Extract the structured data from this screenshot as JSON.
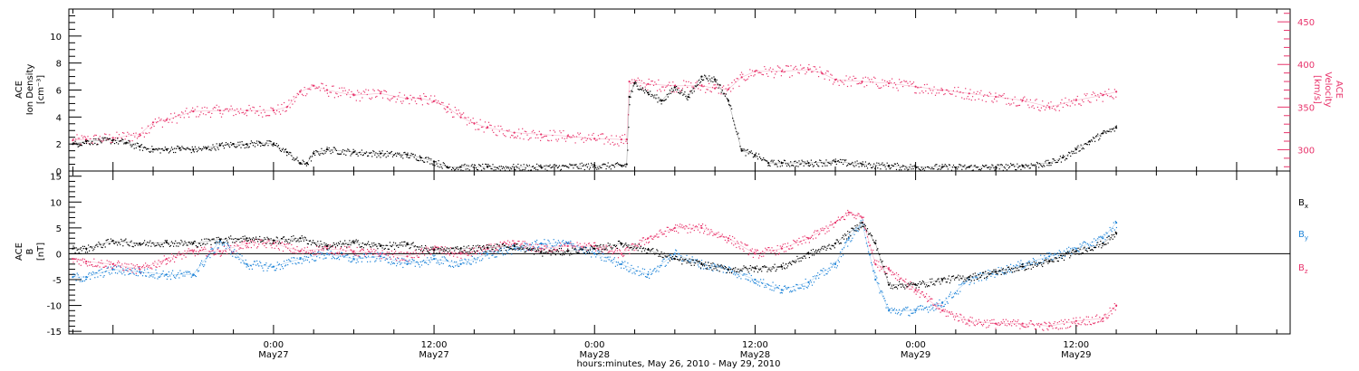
{
  "colors": {
    "black": "#000000",
    "pink": "#e8336b",
    "blue": "#1f84d8",
    "grid": "#000000"
  },
  "time": {
    "title": "hours:minutes, May 26, 2010 - May 29, 2010",
    "ticks": [
      {
        "h": 24,
        "label": "0:00",
        "sub": "May27"
      },
      {
        "h": 36,
        "label": "12:00",
        "sub": "May27"
      },
      {
        "h": 48,
        "label": "0:00",
        "sub": "May28"
      },
      {
        "h": 60,
        "label": "12:00",
        "sub": "May28"
      },
      {
        "h": 72,
        "label": "0:00",
        "sub": "May29"
      },
      {
        "h": 84,
        "label": "12:00",
        "sub": "May29"
      }
    ]
  },
  "chart_data": [
    {
      "type": "scatter",
      "title": "",
      "ylabel": "ACE Ion Density [cm^-3]",
      "y2label": "ACE Velocity [km/s]",
      "xlim_hours": [
        8.7,
        100
      ],
      "ylim": [
        0,
        12
      ],
      "y2lim": [
        275,
        465
      ],
      "yticks": [
        0,
        2,
        4,
        6,
        8,
        10
      ],
      "y2ticks": [
        300,
        350,
        400,
        450
      ],
      "series": [
        {
          "name": "Ion Density",
          "axis": "left",
          "color": "#000000",
          "points": [
            [
              9,
              2
            ],
            [
              10,
              2.2
            ],
            [
              12,
              2.3
            ],
            [
              13,
              2.1
            ],
            [
              14,
              1.8
            ],
            [
              15,
              1.6
            ],
            [
              16,
              1.6
            ],
            [
              17,
              1.7
            ],
            [
              18,
              1.6
            ],
            [
              19,
              1.7
            ],
            [
              20,
              1.9
            ],
            [
              21,
              2
            ],
            [
              22,
              2
            ],
            [
              23,
              2.1
            ],
            [
              24,
              2
            ],
            [
              25,
              1.4
            ],
            [
              26,
              0.6
            ],
            [
              26.5,
              0.6
            ],
            [
              27,
              1.3
            ],
            [
              28,
              1.6
            ],
            [
              30,
              1.4
            ],
            [
              32,
              1.3
            ],
            [
              34,
              1.2
            ],
            [
              35,
              1
            ],
            [
              36,
              0.7
            ],
            [
              37,
              0.3
            ],
            [
              38,
              0.3
            ],
            [
              40,
              0.3
            ],
            [
              44,
              0.3
            ],
            [
              48,
              0.4
            ],
            [
              50,
              0.4
            ],
            [
              50.4,
              0.5
            ],
            [
              50.6,
              5.5
            ],
            [
              51,
              6.5
            ],
            [
              52,
              5.8
            ],
            [
              53,
              5.2
            ],
            [
              54,
              6.2
            ],
            [
              55,
              5.5
            ],
            [
              56,
              7
            ],
            [
              57,
              6.8
            ],
            [
              58,
              5.2
            ],
            [
              59,
              1.5
            ],
            [
              60,
              1.2
            ],
            [
              61,
              0.6
            ],
            [
              62,
              0.6
            ],
            [
              64,
              0.6
            ],
            [
              66,
              0.7
            ],
            [
              68,
              0.5
            ],
            [
              70,
              0.4
            ],
            [
              72,
              0.3
            ],
            [
              74,
              0.3
            ],
            [
              76,
              0.3
            ],
            [
              78,
              0.3
            ],
            [
              80,
              0.4
            ],
            [
              82,
              0.6
            ],
            [
              83,
              1
            ],
            [
              84,
              1.6
            ],
            [
              85,
              2.2
            ],
            [
              86,
              2.8
            ],
            [
              87,
              3.2
            ]
          ]
        },
        {
          "name": "Velocity",
          "axis": "right",
          "color": "#e8336b",
          "points": [
            [
              9,
              311
            ],
            [
              10,
              312
            ],
            [
              12,
              314
            ],
            [
              14,
              318
            ],
            [
              15,
              332
            ],
            [
              16,
              335
            ],
            [
              18,
              345
            ],
            [
              20,
              346
            ],
            [
              22,
              346
            ],
            [
              24,
              346
            ],
            [
              25,
              350
            ],
            [
              26,
              368
            ],
            [
              27,
              375
            ],
            [
              28,
              370
            ],
            [
              30,
              364
            ],
            [
              32,
              366
            ],
            [
              34,
              360
            ],
            [
              35,
              360
            ],
            [
              36,
              357
            ],
            [
              37,
              350
            ],
            [
              38,
              338
            ],
            [
              39,
              331
            ],
            [
              40,
              326
            ],
            [
              42,
              320
            ],
            [
              44,
              318
            ],
            [
              46,
              316
            ],
            [
              48,
              313
            ],
            [
              50,
              312
            ],
            [
              50.4,
              312
            ],
            [
              50.6,
              380
            ],
            [
              52,
              377
            ],
            [
              54,
              375
            ],
            [
              56,
              375
            ],
            [
              57,
              372
            ],
            [
              58,
              371
            ],
            [
              59,
              385
            ],
            [
              60,
              392
            ],
            [
              62,
              392
            ],
            [
              64,
              394
            ],
            [
              65,
              390
            ],
            [
              66,
              382
            ],
            [
              68,
              380
            ],
            [
              70,
              378
            ],
            [
              72,
              374
            ],
            [
              74,
              370
            ],
            [
              76,
              366
            ],
            [
              78,
              362
            ],
            [
              80,
              358
            ],
            [
              82,
              350
            ],
            [
              84,
              358
            ],
            [
              86,
              364
            ],
            [
              87,
              368
            ]
          ]
        }
      ]
    },
    {
      "type": "scatter",
      "title": "",
      "ylabel": "ACE B [nT]",
      "xlim_hours": [
        8.7,
        100
      ],
      "ylim": [
        -15.5,
        16
      ],
      "yticks": [
        -15,
        -10,
        -5,
        0,
        5,
        10,
        15
      ],
      "series": [
        {
          "name": "B_x",
          "color": "#000000",
          "points": [
            [
              9,
              1
            ],
            [
              10,
              1
            ],
            [
              12,
              2.5
            ],
            [
              14,
              2
            ],
            [
              16,
              2.2
            ],
            [
              18,
              2
            ],
            [
              20,
              2.8
            ],
            [
              22,
              3
            ],
            [
              24,
              2.6
            ],
            [
              26,
              3
            ],
            [
              28,
              1.5
            ],
            [
              30,
              2.2
            ],
            [
              32,
              1.5
            ],
            [
              34,
              1.8
            ],
            [
              36,
              0.7
            ],
            [
              38,
              1
            ],
            [
              40,
              1.2
            ],
            [
              42,
              1.5
            ],
            [
              44,
              0.3
            ],
            [
              46,
              0.5
            ],
            [
              48,
              1
            ],
            [
              50,
              2
            ],
            [
              52,
              0.8
            ],
            [
              54,
              -1
            ],
            [
              56,
              -2
            ],
            [
              58,
              -3
            ],
            [
              60,
              -2.8
            ],
            [
              62,
              -2.5
            ],
            [
              64,
              0
            ],
            [
              66,
              2
            ],
            [
              68,
              6
            ],
            [
              69,
              2
            ],
            [
              70,
              -6
            ],
            [
              72,
              -6
            ],
            [
              74,
              -5
            ],
            [
              76,
              -4.5
            ],
            [
              78,
              -3.5
            ],
            [
              80,
              -2.5
            ],
            [
              82,
              -1.5
            ],
            [
              84,
              0.5
            ],
            [
              86,
              2
            ],
            [
              87,
              4
            ]
          ]
        },
        {
          "name": "B_y",
          "color": "#1f84d8",
          "points": [
            [
              9,
              -4.5
            ],
            [
              10,
              -4.5
            ],
            [
              12,
              -3
            ],
            [
              14,
              -3.5
            ],
            [
              16,
              -4
            ],
            [
              18,
              -4
            ],
            [
              20,
              2.5
            ],
            [
              22,
              -2
            ],
            [
              24,
              -2.5
            ],
            [
              26,
              -1
            ],
            [
              28,
              0
            ],
            [
              30,
              -1
            ],
            [
              32,
              -0.5
            ],
            [
              34,
              -2
            ],
            [
              36,
              -1
            ],
            [
              38,
              -2
            ],
            [
              40,
              0
            ],
            [
              42,
              1
            ],
            [
              44,
              2
            ],
            [
              46,
              2
            ],
            [
              48,
              0
            ],
            [
              50,
              -2
            ],
            [
              52,
              -4
            ],
            [
              54,
              0
            ],
            [
              56,
              -2
            ],
            [
              58,
              -3
            ],
            [
              60,
              -5
            ],
            [
              62,
              -7
            ],
            [
              64,
              -5.5
            ],
            [
              66,
              -2
            ],
            [
              67,
              3
            ],
            [
              68,
              6
            ],
            [
              69,
              -5
            ],
            [
              70,
              -11
            ],
            [
              72,
              -11
            ],
            [
              74,
              -9.5
            ],
            [
              76,
              -5
            ],
            [
              78,
              -3.5
            ],
            [
              80,
              -2
            ],
            [
              82,
              -0.5
            ],
            [
              84,
              1
            ],
            [
              86,
              3
            ],
            [
              87,
              6
            ]
          ]
        },
        {
          "name": "B_z",
          "color": "#e8336b",
          "points": [
            [
              9,
              -1
            ],
            [
              10,
              -1.5
            ],
            [
              12,
              -2
            ],
            [
              14,
              -3
            ],
            [
              16,
              -1
            ],
            [
              18,
              0.5
            ],
            [
              20,
              0.5
            ],
            [
              22,
              2
            ],
            [
              24,
              2
            ],
            [
              26,
              0.5
            ],
            [
              28,
              1
            ],
            [
              30,
              0.5
            ],
            [
              32,
              0
            ],
            [
              34,
              -0.5
            ],
            [
              36,
              1
            ],
            [
              38,
              0
            ],
            [
              40,
              1
            ],
            [
              42,
              2
            ],
            [
              44,
              1
            ],
            [
              46,
              1.5
            ],
            [
              48,
              1.5
            ],
            [
              50,
              0
            ],
            [
              52,
              3
            ],
            [
              54,
              5
            ],
            [
              56,
              5
            ],
            [
              58,
              3
            ],
            [
              60,
              0
            ],
            [
              62,
              1
            ],
            [
              64,
              3
            ],
            [
              66,
              6
            ],
            [
              67,
              8
            ],
            [
              68,
              7
            ],
            [
              69,
              -2
            ],
            [
              70,
              -3
            ],
            [
              72,
              -7
            ],
            [
              74,
              -11
            ],
            [
              76,
              -13
            ],
            [
              78,
              -13.5
            ],
            [
              80,
              -13.5
            ],
            [
              82,
              -14
            ],
            [
              84,
              -13
            ],
            [
              86,
              -12.5
            ],
            [
              87,
              -10
            ]
          ]
        }
      ]
    }
  ],
  "legend": {
    "bx": {
      "main": "B",
      "sub": "x"
    },
    "by": {
      "main": "B",
      "sub": "y"
    },
    "bz": {
      "main": "B",
      "sub": "z"
    }
  },
  "labels": {
    "top_left_1": "ACE",
    "top_left_2": "Ion Density",
    "top_left_3": "[cm⁻³]",
    "top_right_1": "ACE",
    "top_right_2": "Velocity",
    "top_right_3": "[km/s]",
    "bot_left_1": "ACE",
    "bot_left_2": "B",
    "bot_left_3": "[nT]"
  }
}
